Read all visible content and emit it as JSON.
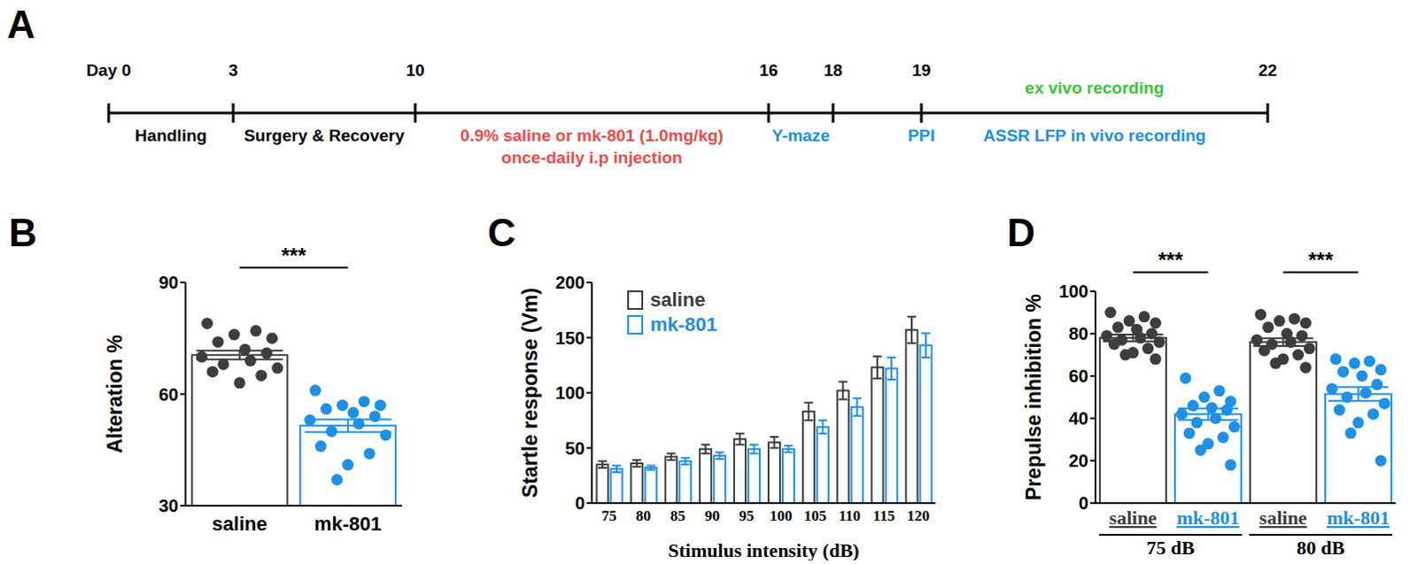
{
  "timeline": {
    "title": "A",
    "days": [
      {
        "value": 0,
        "label": "Day 0"
      },
      3,
      10,
      16,
      18,
      19,
      22
    ],
    "events": [
      {
        "text": [
          "Handling"
        ],
        "from": 0,
        "to": 3,
        "color": "#000000",
        "position": "below"
      },
      {
        "text": [
          "Surgery & Recovery"
        ],
        "from": 3,
        "to": 10,
        "color": "#000000",
        "position": "below"
      },
      {
        "text": [
          "0.9% saline or mk-801 (1.0mg/kg)",
          "once-daily i.p  injection"
        ],
        "from": 10,
        "to": 16,
        "color": "#ee4b4a",
        "position": "below"
      },
      {
        "text": [
          "Y-maze"
        ],
        "from": 16,
        "to": 18,
        "color": "#1e90e6",
        "position": "below"
      },
      {
        "text": [
          "PPI"
        ],
        "from": 19,
        "to": 19,
        "color": "#1e90e6",
        "position": "below"
      },
      {
        "text": [
          "ASSR LFP in vivo recording"
        ],
        "from": 19,
        "to": 22,
        "color": "#1e90e6",
        "position": "below"
      },
      {
        "text": [
          "ex vivo recording"
        ],
        "from": 19,
        "to": 22,
        "color": "#3cc43c",
        "position": "above"
      }
    ]
  },
  "chart_data": [
    {
      "title": "B",
      "type": "bar",
      "categories": [
        "saline",
        "mk-801"
      ],
      "values": [
        70.5,
        51.5
      ],
      "errors": [
        1.2,
        1.7
      ],
      "points": [
        [
          79,
          77,
          76,
          75,
          74,
          72,
          71,
          70,
          69,
          68,
          67,
          66,
          65,
          63
        ],
        [
          61,
          58,
          57,
          57,
          56,
          55,
          54,
          53,
          52,
          50,
          49,
          46,
          44,
          41,
          37
        ]
      ],
      "colors": [
        "#3d3d3d",
        "#1e90e6"
      ],
      "ylabel": "Alteration %",
      "ylim": [
        30,
        90
      ],
      "yticks": [
        30,
        60,
        90
      ],
      "annotations": [
        {
          "text": "***",
          "from": 0,
          "to": 1,
          "y": 94
        }
      ]
    },
    {
      "title": "C",
      "type": "bar",
      "categories": [
        75,
        80,
        85,
        90,
        95,
        100,
        105,
        110,
        115,
        120
      ],
      "series": [
        {
          "name": "saline",
          "color": "#3d3d3d",
          "values": [
            35,
            36,
            42,
            49,
            58,
            55,
            83,
            102,
            123,
            157
          ],
          "errors": [
            3,
            3,
            3,
            4,
            5,
            5,
            8,
            8,
            10,
            12
          ]
        },
        {
          "name": "mk-801",
          "color": "#1e90e6",
          "values": [
            31,
            32,
            38,
            43,
            49,
            49,
            69,
            87,
            122,
            143
          ],
          "errors": [
            3,
            2,
            3,
            3,
            4,
            3,
            6,
            8,
            10,
            11
          ]
        }
      ],
      "xlabel": "Stimulus intensity (dB)",
      "ylabel": "Startle response (Vm)",
      "ylim": [
        0,
        200
      ],
      "yticks": [
        0,
        50,
        100,
        150,
        200
      ],
      "legend": "top-left"
    },
    {
      "title": "D",
      "type": "bar",
      "categories": [
        "saline",
        "mk-801",
        "saline",
        "mk-801"
      ],
      "groups": [
        {
          "label": "75 dB",
          "from": 0,
          "to": 1
        },
        {
          "label": "80 dB",
          "from": 2,
          "to": 3
        }
      ],
      "values": [
        78,
        42,
        76,
        51.5
      ],
      "errors": [
        1.6,
        2.7,
        1.8,
        3.3
      ],
      "points": [
        [
          90,
          88,
          86,
          85,
          83,
          82,
          80,
          79,
          78,
          77,
          76,
          75,
          73,
          71,
          70,
          68
        ],
        [
          59,
          53,
          50,
          48,
          46,
          45,
          44,
          42,
          40,
          38,
          36,
          33,
          31,
          28,
          25,
          18
        ],
        [
          89,
          87,
          86,
          85,
          83,
          80,
          79,
          77,
          76,
          75,
          73,
          72,
          70,
          68,
          66,
          64
        ],
        [
          68,
          67,
          66,
          63,
          62,
          60,
          56,
          54,
          52,
          50,
          47,
          44,
          42,
          38,
          33,
          20
        ]
      ],
      "colors": [
        "#3d3d3d",
        "#1e90e6",
        "#3d3d3d",
        "#1e90e6"
      ],
      "ylabel": "Prepulse inhibition %",
      "ylim": [
        0,
        100
      ],
      "yticks": [
        0,
        20,
        40,
        60,
        80,
        100
      ],
      "annotations": [
        {
          "text": "***",
          "from": 0,
          "to": 1,
          "y": 109
        },
        {
          "text": "***",
          "from": 2,
          "to": 3,
          "y": 109
        }
      ]
    }
  ]
}
